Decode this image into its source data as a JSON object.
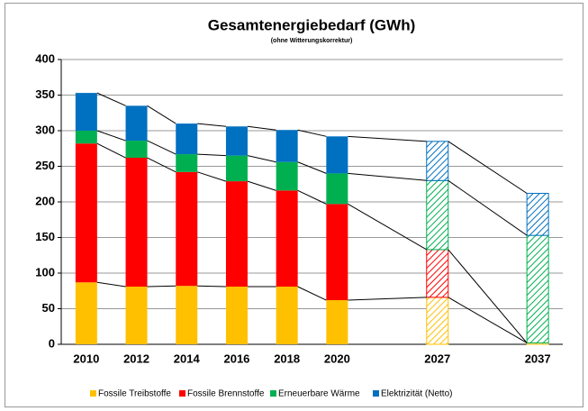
{
  "chart_data": {
    "type": "stacked-bar",
    "title": "Gesamtenergiebedarf (GWh)",
    "subtitle": "(ohne Witterungskorrektur)",
    "categories": [
      "2010",
      "2012",
      "2014",
      "2016",
      "2018",
      "2020",
      null,
      "2027",
      null,
      "2037"
    ],
    "hatched": [
      false,
      false,
      false,
      false,
      false,
      false,
      false,
      true,
      false,
      true
    ],
    "series": [
      {
        "name": "Fossile Treibstoffe",
        "color": "#FFC000",
        "values": [
          87,
          81,
          82,
          81,
          81,
          62,
          null,
          66,
          null,
          2
        ]
      },
      {
        "name": "Fossile Brennstoffe",
        "color": "#FF0000",
        "values": [
          195,
          181,
          160,
          148,
          135,
          135,
          null,
          67,
          null,
          0
        ]
      },
      {
        "name": "Erneuerbare Wärme",
        "color": "#00B050",
        "values": [
          18,
          24,
          25,
          36,
          40,
          43,
          null,
          97,
          null,
          151
        ]
      },
      {
        "name": "Elektrizität (Netto)",
        "color": "#0070C0",
        "values": [
          53,
          49,
          43,
          41,
          45,
          52,
          null,
          55,
          null,
          59
        ]
      }
    ],
    "ylim": [
      0,
      400
    ],
    "yticks": [
      0,
      50,
      100,
      150,
      200,
      250,
      300,
      350,
      400
    ],
    "grid": true,
    "legend": "bottom"
  }
}
